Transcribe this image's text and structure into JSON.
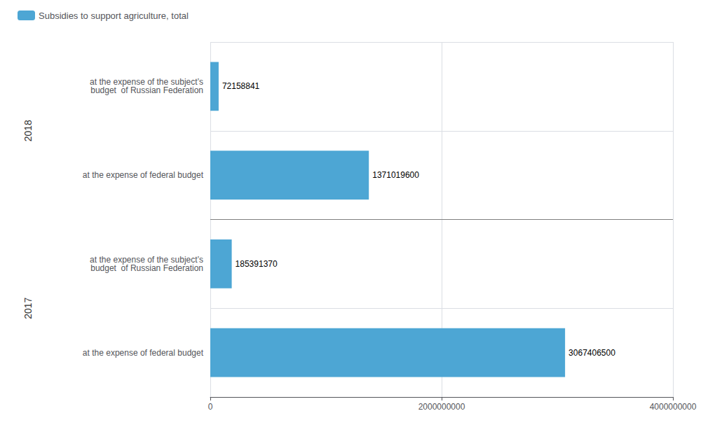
{
  "chart_data": {
    "type": "bar",
    "orientation": "horizontal",
    "categories": [
      "at the expense of federal budget",
      "at the expense of the subject’s\n budget  of Russian Federation",
      "at the expense of federal budget",
      "at the expense of the subject’s\n budget  of Russian Federation"
    ],
    "series": [
      {
        "name": "Subsidies to support agriculture, total",
        "color": "#4da6d4",
        "values": [
          3067406500,
          185391370,
          1371019600,
          72158841
        ]
      }
    ],
    "data_labels": true,
    "groups": [
      {
        "label": "2017",
        "bars": 2
      },
      {
        "label": "2018",
        "bars": 2
      }
    ],
    "xlim": [
      0,
      4000000000
    ],
    "xticks": [
      0,
      2000000000,
      4000000000
    ],
    "grid": true,
    "legend": "upper left"
  }
}
